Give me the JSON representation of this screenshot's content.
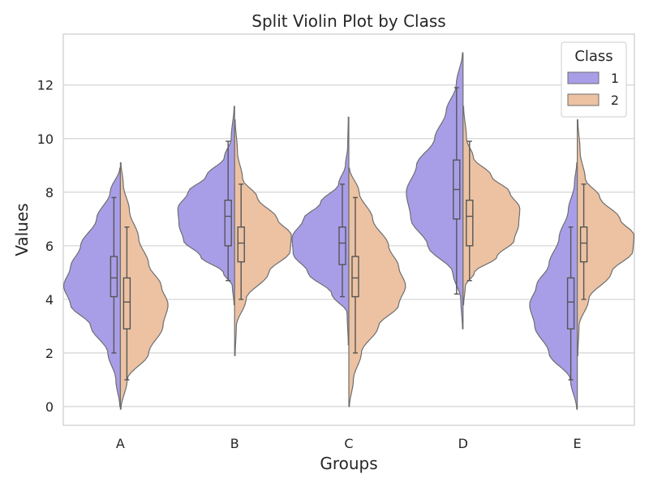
{
  "chart_data": {
    "type": "violin",
    "title": "Split Violin Plot by Class",
    "xlabel": "Groups",
    "ylabel": "Values",
    "categories": [
      "A",
      "B",
      "C",
      "D",
      "E"
    ],
    "ylim": [
      -0.7,
      13.9
    ],
    "yticks": [
      0,
      2,
      4,
      6,
      8,
      10,
      12
    ],
    "grid": true,
    "legend": {
      "title": "Class",
      "position": "top-right"
    },
    "series": [
      {
        "name": "1",
        "color": "#a89ee8",
        "boxes": [
          {
            "whisker_low": 2.0,
            "q1": 4.1,
            "median": 4.8,
            "q3": 5.6,
            "whisker_high": 7.8
          },
          {
            "whisker_low": 4.7,
            "q1": 6.0,
            "median": 7.1,
            "q3": 7.7,
            "whisker_high": 9.9
          },
          {
            "whisker_low": 4.1,
            "q1": 5.3,
            "median": 6.1,
            "q3": 6.7,
            "whisker_high": 8.3
          },
          {
            "whisker_low": 4.2,
            "q1": 7.0,
            "median": 8.1,
            "q3": 9.2,
            "whisker_high": 11.9
          },
          {
            "whisker_low": 1.0,
            "q1": 2.9,
            "median": 3.9,
            "q3": 4.8,
            "whisker_high": 6.7
          }
        ],
        "violins": [
          {
            "ymin": 0.0,
            "ymax": 8.9,
            "profile": [
              [
                0.0,
                0.01
              ],
              [
                1.0,
                0.08
              ],
              [
                2.0,
                0.22
              ],
              [
                3.0,
                0.52
              ],
              [
                3.8,
                0.88
              ],
              [
                4.5,
                1.0
              ],
              [
                5.2,
                0.88
              ],
              [
                6.0,
                0.7
              ],
              [
                7.0,
                0.42
              ],
              [
                8.0,
                0.18
              ],
              [
                8.9,
                0.01
              ]
            ]
          },
          {
            "ymin": 3.8,
            "ymax": 11.2,
            "profile": [
              [
                3.8,
                0.01
              ],
              [
                4.5,
                0.04
              ],
              [
                5.0,
                0.2
              ],
              [
                5.6,
                0.6
              ],
              [
                6.2,
                0.9
              ],
              [
                6.8,
                0.98
              ],
              [
                7.4,
                1.0
              ],
              [
                8.0,
                0.82
              ],
              [
                8.6,
                0.5
              ],
              [
                9.3,
                0.18
              ],
              [
                10.0,
                0.06
              ],
              [
                11.2,
                0.01
              ]
            ]
          },
          {
            "ymin": 2.3,
            "ymax": 10.8,
            "profile": [
              [
                2.3,
                0.01
              ],
              [
                3.5,
                0.03
              ],
              [
                4.2,
                0.3
              ],
              [
                5.0,
                0.72
              ],
              [
                5.7,
                0.98
              ],
              [
                6.3,
                1.0
              ],
              [
                7.0,
                0.8
              ],
              [
                7.6,
                0.5
              ],
              [
                8.3,
                0.18
              ],
              [
                9.0,
                0.06
              ],
              [
                9.7,
                0.02
              ],
              [
                10.8,
                0.01
              ]
            ]
          },
          {
            "ymin": 2.9,
            "ymax": 13.2,
            "profile": [
              [
                2.9,
                0.01
              ],
              [
                4.0,
                0.04
              ],
              [
                5.0,
                0.18
              ],
              [
                6.0,
                0.62
              ],
              [
                7.0,
                0.92
              ],
              [
                8.0,
                1.0
              ],
              [
                9.0,
                0.82
              ],
              [
                10.0,
                0.5
              ],
              [
                11.0,
                0.3
              ],
              [
                12.0,
                0.12
              ],
              [
                13.2,
                0.01
              ]
            ]
          },
          {
            "ymin": -0.1,
            "ymax": 9.1,
            "profile": [
              [
                -0.1,
                0.01
              ],
              [
                1.0,
                0.12
              ],
              [
                2.0,
                0.5
              ],
              [
                3.0,
                0.75
              ],
              [
                3.8,
                0.84
              ],
              [
                4.5,
                0.72
              ],
              [
                5.3,
                0.5
              ],
              [
                6.3,
                0.32
              ],
              [
                7.3,
                0.16
              ],
              [
                8.3,
                0.05
              ],
              [
                9.1,
                0.01
              ]
            ]
          }
        ]
      },
      {
        "name": "2",
        "color": "#ecc2a3",
        "boxes": [
          {
            "whisker_low": 1.0,
            "q1": 2.9,
            "median": 3.9,
            "q3": 4.8,
            "whisker_high": 6.7
          },
          {
            "whisker_low": 4.0,
            "q1": 5.4,
            "median": 6.1,
            "q3": 6.7,
            "whisker_high": 8.3
          },
          {
            "whisker_low": 2.0,
            "q1": 4.1,
            "median": 4.8,
            "q3": 5.6,
            "whisker_high": 7.8
          },
          {
            "whisker_low": 4.7,
            "q1": 6.0,
            "median": 7.1,
            "q3": 7.7,
            "whisker_high": 9.9
          },
          {
            "whisker_low": 4.0,
            "q1": 5.4,
            "median": 6.1,
            "q3": 6.7,
            "whisker_high": 8.3
          }
        ],
        "violins": [
          {
            "ymin": -0.1,
            "ymax": 9.1,
            "profile": [
              [
                -0.1,
                0.01
              ],
              [
                1.0,
                0.12
              ],
              [
                2.0,
                0.5
              ],
              [
                3.0,
                0.75
              ],
              [
                3.8,
                0.84
              ],
              [
                4.5,
                0.72
              ],
              [
                5.3,
                0.5
              ],
              [
                6.3,
                0.32
              ],
              [
                7.3,
                0.16
              ],
              [
                8.3,
                0.05
              ],
              [
                9.1,
                0.01
              ]
            ]
          },
          {
            "ymin": 1.9,
            "ymax": 10.7,
            "profile": [
              [
                1.9,
                0.01
              ],
              [
                3.0,
                0.03
              ],
              [
                4.0,
                0.2
              ],
              [
                5.0,
                0.6
              ],
              [
                5.8,
                0.98
              ],
              [
                6.4,
                1.0
              ],
              [
                7.0,
                0.75
              ],
              [
                7.8,
                0.4
              ],
              [
                8.5,
                0.14
              ],
              [
                9.5,
                0.05
              ],
              [
                10.7,
                0.01
              ]
            ]
          },
          {
            "ymin": 0.0,
            "ymax": 8.9,
            "profile": [
              [
                0.0,
                0.01
              ],
              [
                1.0,
                0.08
              ],
              [
                2.0,
                0.22
              ],
              [
                3.0,
                0.52
              ],
              [
                3.8,
                0.88
              ],
              [
                4.5,
                1.0
              ],
              [
                5.2,
                0.88
              ],
              [
                6.0,
                0.7
              ],
              [
                7.0,
                0.42
              ],
              [
                8.0,
                0.18
              ],
              [
                8.9,
                0.01
              ]
            ]
          },
          {
            "ymin": 3.8,
            "ymax": 11.2,
            "profile": [
              [
                3.8,
                0.01
              ],
              [
                4.5,
                0.04
              ],
              [
                5.0,
                0.2
              ],
              [
                5.6,
                0.6
              ],
              [
                6.2,
                0.9
              ],
              [
                6.8,
                0.98
              ],
              [
                7.4,
                1.0
              ],
              [
                8.0,
                0.82
              ],
              [
                8.6,
                0.5
              ],
              [
                9.3,
                0.18
              ],
              [
                10.0,
                0.06
              ],
              [
                11.2,
                0.01
              ]
            ]
          },
          {
            "ymin": 1.9,
            "ymax": 10.7,
            "profile": [
              [
                1.9,
                0.01
              ],
              [
                3.0,
                0.03
              ],
              [
                4.0,
                0.2
              ],
              [
                5.0,
                0.6
              ],
              [
                5.8,
                0.98
              ],
              [
                6.4,
                1.0
              ],
              [
                7.0,
                0.75
              ],
              [
                7.8,
                0.4
              ],
              [
                8.5,
                0.14
              ],
              [
                9.5,
                0.05
              ],
              [
                10.7,
                0.01
              ]
            ]
          }
        ]
      }
    ]
  }
}
